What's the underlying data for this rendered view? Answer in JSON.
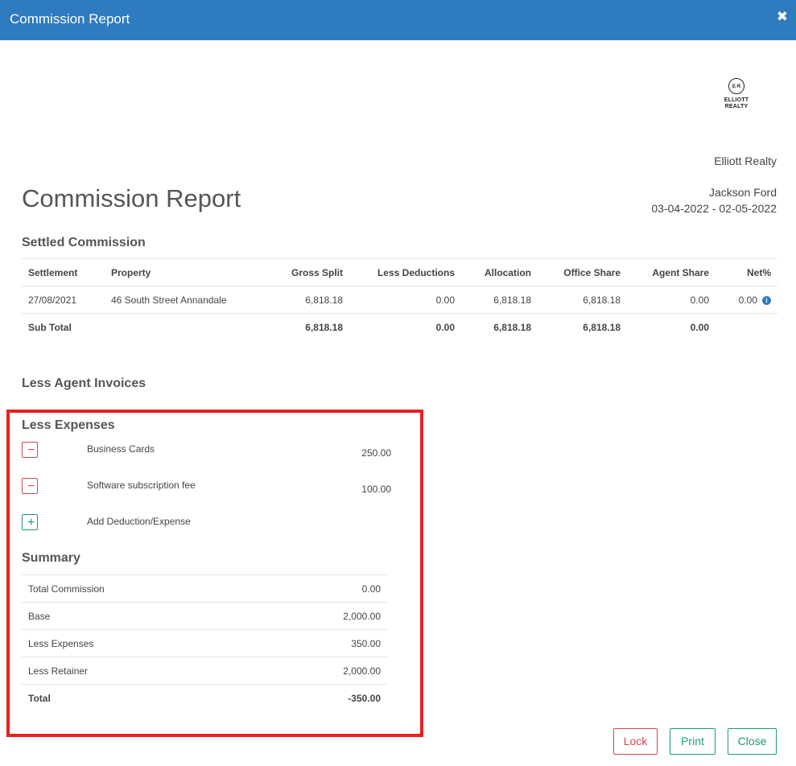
{
  "modal": {
    "title": "Commission Report",
    "close_glyph": "✖"
  },
  "logo": {
    "mark": "E·R",
    "line1": "ELLIOTT",
    "line2": "REALTY"
  },
  "report": {
    "title": "Commission Report",
    "agency": "Elliott Realty",
    "agent": "Jackson Ford",
    "period": "03-04-2022 - 02-05-2022"
  },
  "settled": {
    "heading": "Settled Commission",
    "columns": {
      "settlement": "Settlement",
      "property": "Property",
      "gross_split": "Gross Split",
      "less_deductions": "Less Deductions",
      "allocation": "Allocation",
      "office_share": "Office Share",
      "agent_share": "Agent Share",
      "net_pct": "Net%"
    },
    "rows": [
      {
        "settlement": "27/08/2021",
        "property": "46 South Street Annandale",
        "gross_split": "6,818.18",
        "less_deductions": "0.00",
        "allocation": "6,818.18",
        "office_share": "6,818.18",
        "agent_share": "0.00",
        "net_pct": "0.00"
      }
    ],
    "subtotal": {
      "label": "Sub Total",
      "gross_split": "6,818.18",
      "less_deductions": "0.00",
      "allocation": "6,818.18",
      "office_share": "6,818.18",
      "agent_share": "0.00"
    }
  },
  "agent_invoices": {
    "heading": "Less Agent Invoices"
  },
  "expenses": {
    "heading": "Less Expenses",
    "items": [
      {
        "label": "Business Cards",
        "amount": "250.00"
      },
      {
        "label": "Software subscription fee",
        "amount": "100.00"
      }
    ],
    "add_label": "Add Deduction/Expense",
    "remove_glyph": "−",
    "add_glyph": "+"
  },
  "summary": {
    "heading": "Summary",
    "rows": [
      {
        "label": "Total Commission",
        "value": "0.00"
      },
      {
        "label": "Base",
        "value": "2,000.00"
      },
      {
        "label": "Less Expenses",
        "value": "350.00"
      },
      {
        "label": "Less Retainer",
        "value": "2,000.00"
      }
    ],
    "total": {
      "label": "Total",
      "value": "-350.00"
    }
  },
  "buttons": {
    "lock": "Lock",
    "print": "Print",
    "close": "Close"
  },
  "colors": {
    "header": "#2f7bbf",
    "danger": "#d64550",
    "success": "#1a9b7b",
    "highlight": "#e8201f"
  }
}
